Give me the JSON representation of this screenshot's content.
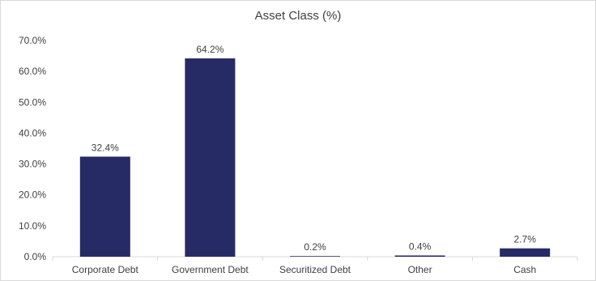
{
  "chart_data": {
    "type": "bar",
    "title": "Asset Class (%)",
    "categories": [
      "Corporate Debt",
      "Government Debt",
      "Securitized Debt",
      "Other",
      "Cash"
    ],
    "values": [
      32.4,
      64.2,
      0.2,
      0.4,
      2.7
    ],
    "data_labels": [
      "32.4%",
      "64.2%",
      "0.2%",
      "0.4%",
      "2.7%"
    ],
    "ylim": [
      0,
      70
    ],
    "yticks": [
      0,
      10,
      20,
      30,
      40,
      50,
      60,
      70
    ],
    "ytick_labels": [
      "0.0%",
      "10.0%",
      "20.0%",
      "30.0%",
      "40.0%",
      "50.0%",
      "60.0%",
      "70.0%"
    ],
    "xlabel": "",
    "ylabel": "",
    "grid": false,
    "legend": "none",
    "bar_color": "#262a65"
  }
}
